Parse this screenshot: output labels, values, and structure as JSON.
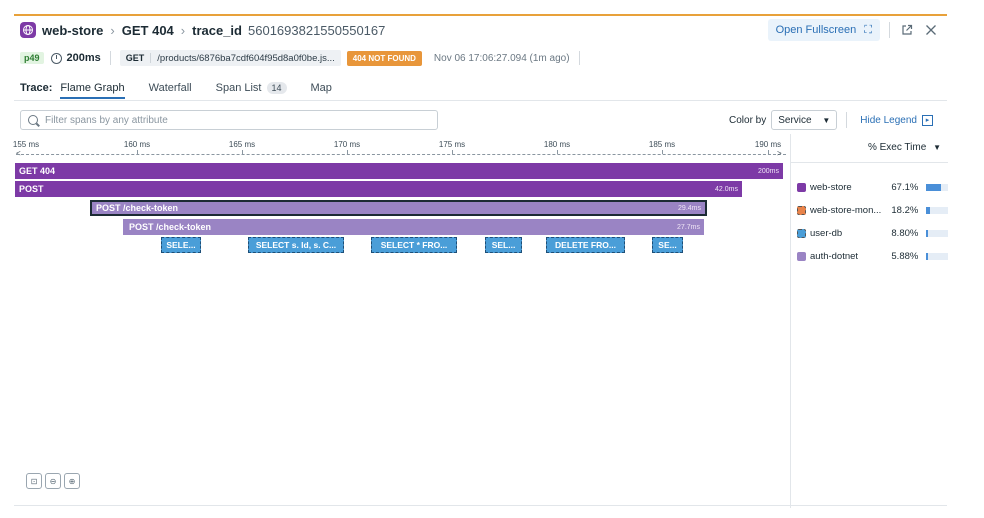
{
  "header": {
    "service": "web-store",
    "resource": "GET 404",
    "trace_label": "trace_id",
    "trace_id": "5601693821550550167",
    "open_fullscreen": "Open Fullscreen"
  },
  "meta": {
    "priority": "p49",
    "duration": "200ms",
    "method": "GET",
    "url": "/products/6876ba7cdf604f95d8a0f0be.js...",
    "status": "404 NOT FOUND",
    "timestamp": "Nov 06 17:06:27.094 (1m ago)"
  },
  "tabs": {
    "label": "Trace:",
    "items": [
      {
        "label": "Flame Graph",
        "active": true
      },
      {
        "label": "Waterfall"
      },
      {
        "label": "Span List",
        "count": "14"
      },
      {
        "label": "Map"
      }
    ]
  },
  "filter": {
    "placeholder": "Filter spans by any attribute"
  },
  "color_by": {
    "label": "Color by",
    "value": "Service",
    "hide_legend": "Hide Legend"
  },
  "axis": {
    "ticks": [
      "155 ms",
      "160 ms",
      "165 ms",
      "170 ms",
      "175 ms",
      "180 ms",
      "185 ms",
      "190 ms"
    ]
  },
  "frames": [
    {
      "label": "GET 404",
      "duration": "200ms"
    },
    {
      "label": "POST",
      "duration": "42.0ms"
    },
    {
      "label": "POST /check-token",
      "duration": "29.4ms"
    },
    {
      "label": "POST /check-token",
      "duration": "27.7ms"
    },
    {
      "label": "SELE..."
    },
    {
      "label": "SELECT s. Id, s. C..."
    },
    {
      "label": "SELECT * FRO..."
    },
    {
      "label": "SEL..."
    },
    {
      "label": "DELETE FRO..."
    },
    {
      "label": "SE..."
    }
  ],
  "legend": {
    "header": "% Exec Time",
    "items": [
      {
        "name": "web-store",
        "pct": "67.1%",
        "value": 0.671,
        "color": "#7d3aa6"
      },
      {
        "name": "web-store-mon...",
        "pct": "18.2%",
        "value": 0.182,
        "color": "#e8834a"
      },
      {
        "name": "user-db",
        "pct": "8.80%",
        "value": 0.088,
        "color": "#4a9ed8"
      },
      {
        "name": "auth-dotnet",
        "pct": "5.88%",
        "value": 0.0588,
        "color": "#9a84c4"
      }
    ]
  },
  "colors": {
    "accent": "#2a6fb5",
    "web_store": "#7d3aa6",
    "auth": "#9a84c4",
    "db": "#4a9ed8",
    "status_404": "#e8963a"
  }
}
